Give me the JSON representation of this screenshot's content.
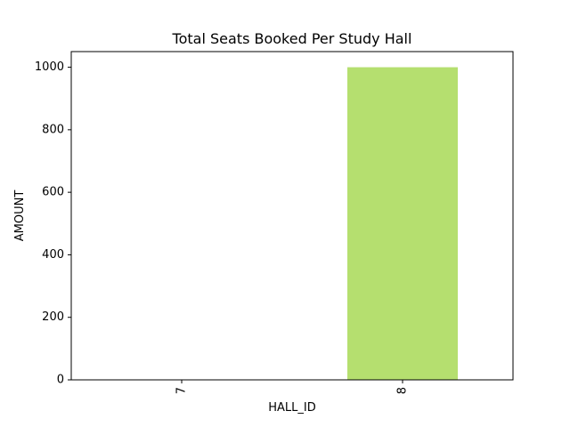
{
  "chart_data": {
    "type": "bar",
    "title": "Total Seats Booked Per Study Hall",
    "xlabel": "HALL_ID",
    "ylabel": "AMOUNT",
    "categories": [
      "7",
      "8"
    ],
    "values": [
      0,
      1000
    ],
    "ylim": [
      0,
      1050
    ],
    "yticks": [
      0,
      200,
      400,
      600,
      800,
      1000
    ],
    "xtick_rotation": 90,
    "bar_color": "#b5df6f",
    "grid": false,
    "legend": "none"
  }
}
